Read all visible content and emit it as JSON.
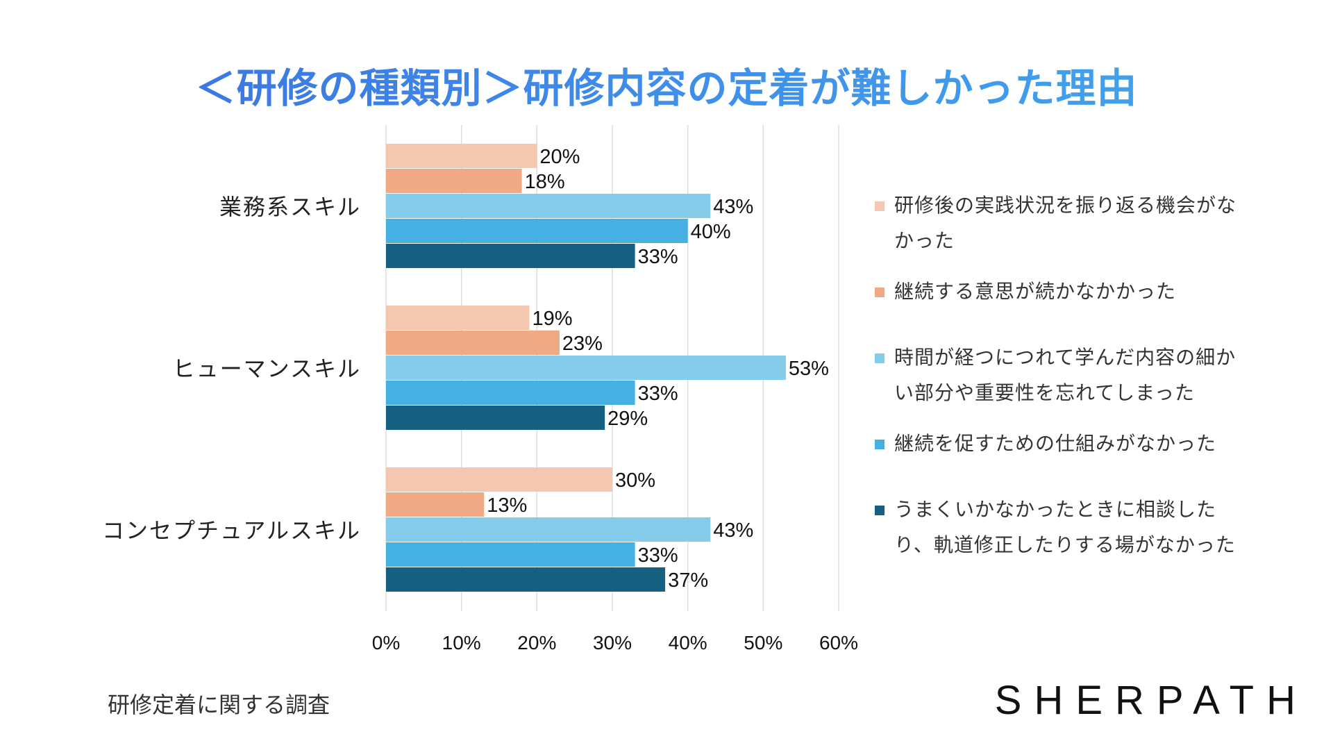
{
  "chart_data": {
    "type": "bar",
    "orientation": "horizontal",
    "title": "＜研修の種類別＞研修内容の定着が難しかった理由",
    "categories": [
      "業務系スキル",
      "ヒューマンスキル",
      "コンセプチュアルスキル"
    ],
    "series": [
      {
        "name": "研修後の実践状況を振り返る機会がなかった",
        "values": [
          20,
          19,
          30
        ],
        "color": "#f4c7b0"
      },
      {
        "name": "継続する意思が続かなかかった",
        "values": [
          18,
          23,
          13
        ],
        "color": "#f0a985"
      },
      {
        "name": "時間が経つにつれて学んだ内容の細かい部分や重要性を忘れてしまった",
        "values": [
          43,
          53,
          43
        ],
        "color": "#85cbea"
      },
      {
        "name": "継続を促すための仕組みがなかった",
        "values": [
          40,
          33,
          33
        ],
        "color": "#45b0e1"
      },
      {
        "name": "うまくいかなかったときに相談したり、軌道修正したりする場がなかった",
        "values": [
          33,
          29,
          37
        ],
        "color": "#155f80"
      }
    ],
    "xlim": [
      0,
      60
    ],
    "xticks": [
      "0%",
      "10%",
      "20%",
      "30%",
      "40%",
      "50%",
      "60%"
    ],
    "value_suffix": "%",
    "grid": true,
    "legend_position": "right"
  },
  "legend_lines": [
    [
      "研修後の実践状況を振り返る機会がな",
      "かった"
    ],
    [
      "継続する意思が続かなかかった"
    ],
    [
      "時間が経つにつれて学んだ内容の細か",
      "い部分や重要性を忘れてしまった"
    ],
    [
      "継続を促すための仕組みがなかった"
    ],
    [
      "うまくいかなかったときに相談した",
      "り、軌道修正したりする場がなかった"
    ]
  ],
  "footer": {
    "note": "研修定着に関する調査",
    "brand": "SHERPATH"
  }
}
